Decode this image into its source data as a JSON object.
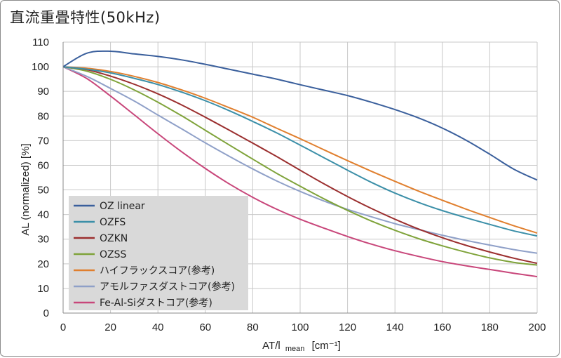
{
  "title": "直流重畳特性(50kHz)",
  "chart_data": {
    "type": "line",
    "xlabel": "AT/l",
    "xlabel_sub": "mean",
    "xlabel_unit": "[cm⁻¹]",
    "ylabel": "AL (normalized) [%]",
    "xlim": [
      0,
      200
    ],
    "ylim": [
      0,
      110
    ],
    "xticks": [
      0,
      20,
      40,
      60,
      80,
      100,
      120,
      140,
      160,
      180,
      200
    ],
    "yticks": [
      0,
      10,
      20,
      30,
      40,
      50,
      60,
      70,
      80,
      90,
      100,
      110
    ],
    "grid": true,
    "legend_position": "bottom-left",
    "x": [
      0,
      10,
      20,
      30,
      40,
      50,
      60,
      70,
      80,
      90,
      100,
      110,
      120,
      130,
      140,
      150,
      160,
      170,
      180,
      190,
      200
    ],
    "series": [
      {
        "name": "OZ linear",
        "color": "#3a5f9c",
        "values": [
          100,
          105.5,
          106.3,
          105.2,
          104.2,
          102.8,
          101,
          99,
          97,
          95,
          92.7,
          90.5,
          88.3,
          85.6,
          82.6,
          79.2,
          75.1,
          70.2,
          64.5,
          58.5,
          54
        ]
      },
      {
        "name": "OZFS",
        "color": "#3b8fa8",
        "values": [
          100,
          99,
          97.5,
          95.3,
          92.8,
          89.7,
          86.2,
          82.2,
          77.8,
          73.2,
          68.2,
          63.1,
          58,
          53.1,
          48.7,
          44.9,
          41.6,
          38.7,
          36,
          33.4,
          31.3
        ]
      },
      {
        "name": "OZKN",
        "color": "#9b2f2f",
        "values": [
          100,
          98.8,
          96.2,
          92.9,
          89,
          84.5,
          79.5,
          74.3,
          69,
          63.6,
          58,
          52.5,
          47.3,
          42.5,
          38.1,
          34.1,
          30.6,
          27.5,
          24.8,
          22.3,
          20.2
        ]
      },
      {
        "name": "OZSS",
        "color": "#7fa33a",
        "values": [
          100,
          98.2,
          94.9,
          90.6,
          85.6,
          80.1,
          74.2,
          68.3,
          62.5,
          56.8,
          51.5,
          46.4,
          41.7,
          37.4,
          33.6,
          30.2,
          27.3,
          24.7,
          22.4,
          20.6,
          19.5
        ]
      },
      {
        "name": "ハイフラックスコア(参考)",
        "color": "#e07f2e",
        "values": [
          100,
          99.4,
          98.1,
          96.1,
          93.6,
          90.6,
          87.2,
          83.4,
          79.5,
          75.1,
          70.8,
          66.3,
          61.9,
          57.6,
          53.5,
          49.5,
          45.8,
          42.2,
          38.8,
          35.5,
          32.5
        ]
      },
      {
        "name": "アモルファスダストコア(参考)",
        "color": "#8fa0c8",
        "values": [
          100,
          96.1,
          91.2,
          86.1,
          80.4,
          74.8,
          69.1,
          63.7,
          58.5,
          53.7,
          49.4,
          45.5,
          42.1,
          39.1,
          36.3,
          33.9,
          31.6,
          29.5,
          27.6,
          25.8,
          24.3
        ]
      },
      {
        "name": "Fe-Al-Siダストコア(参考)",
        "color": "#c8467a",
        "values": [
          100,
          95.2,
          88.1,
          80.5,
          72.8,
          65.5,
          58.7,
          52.5,
          47,
          42.2,
          38.1,
          34.5,
          31.1,
          28,
          25.3,
          23,
          20.9,
          19.2,
          17.7,
          16.2,
          14.8
        ]
      }
    ]
  }
}
